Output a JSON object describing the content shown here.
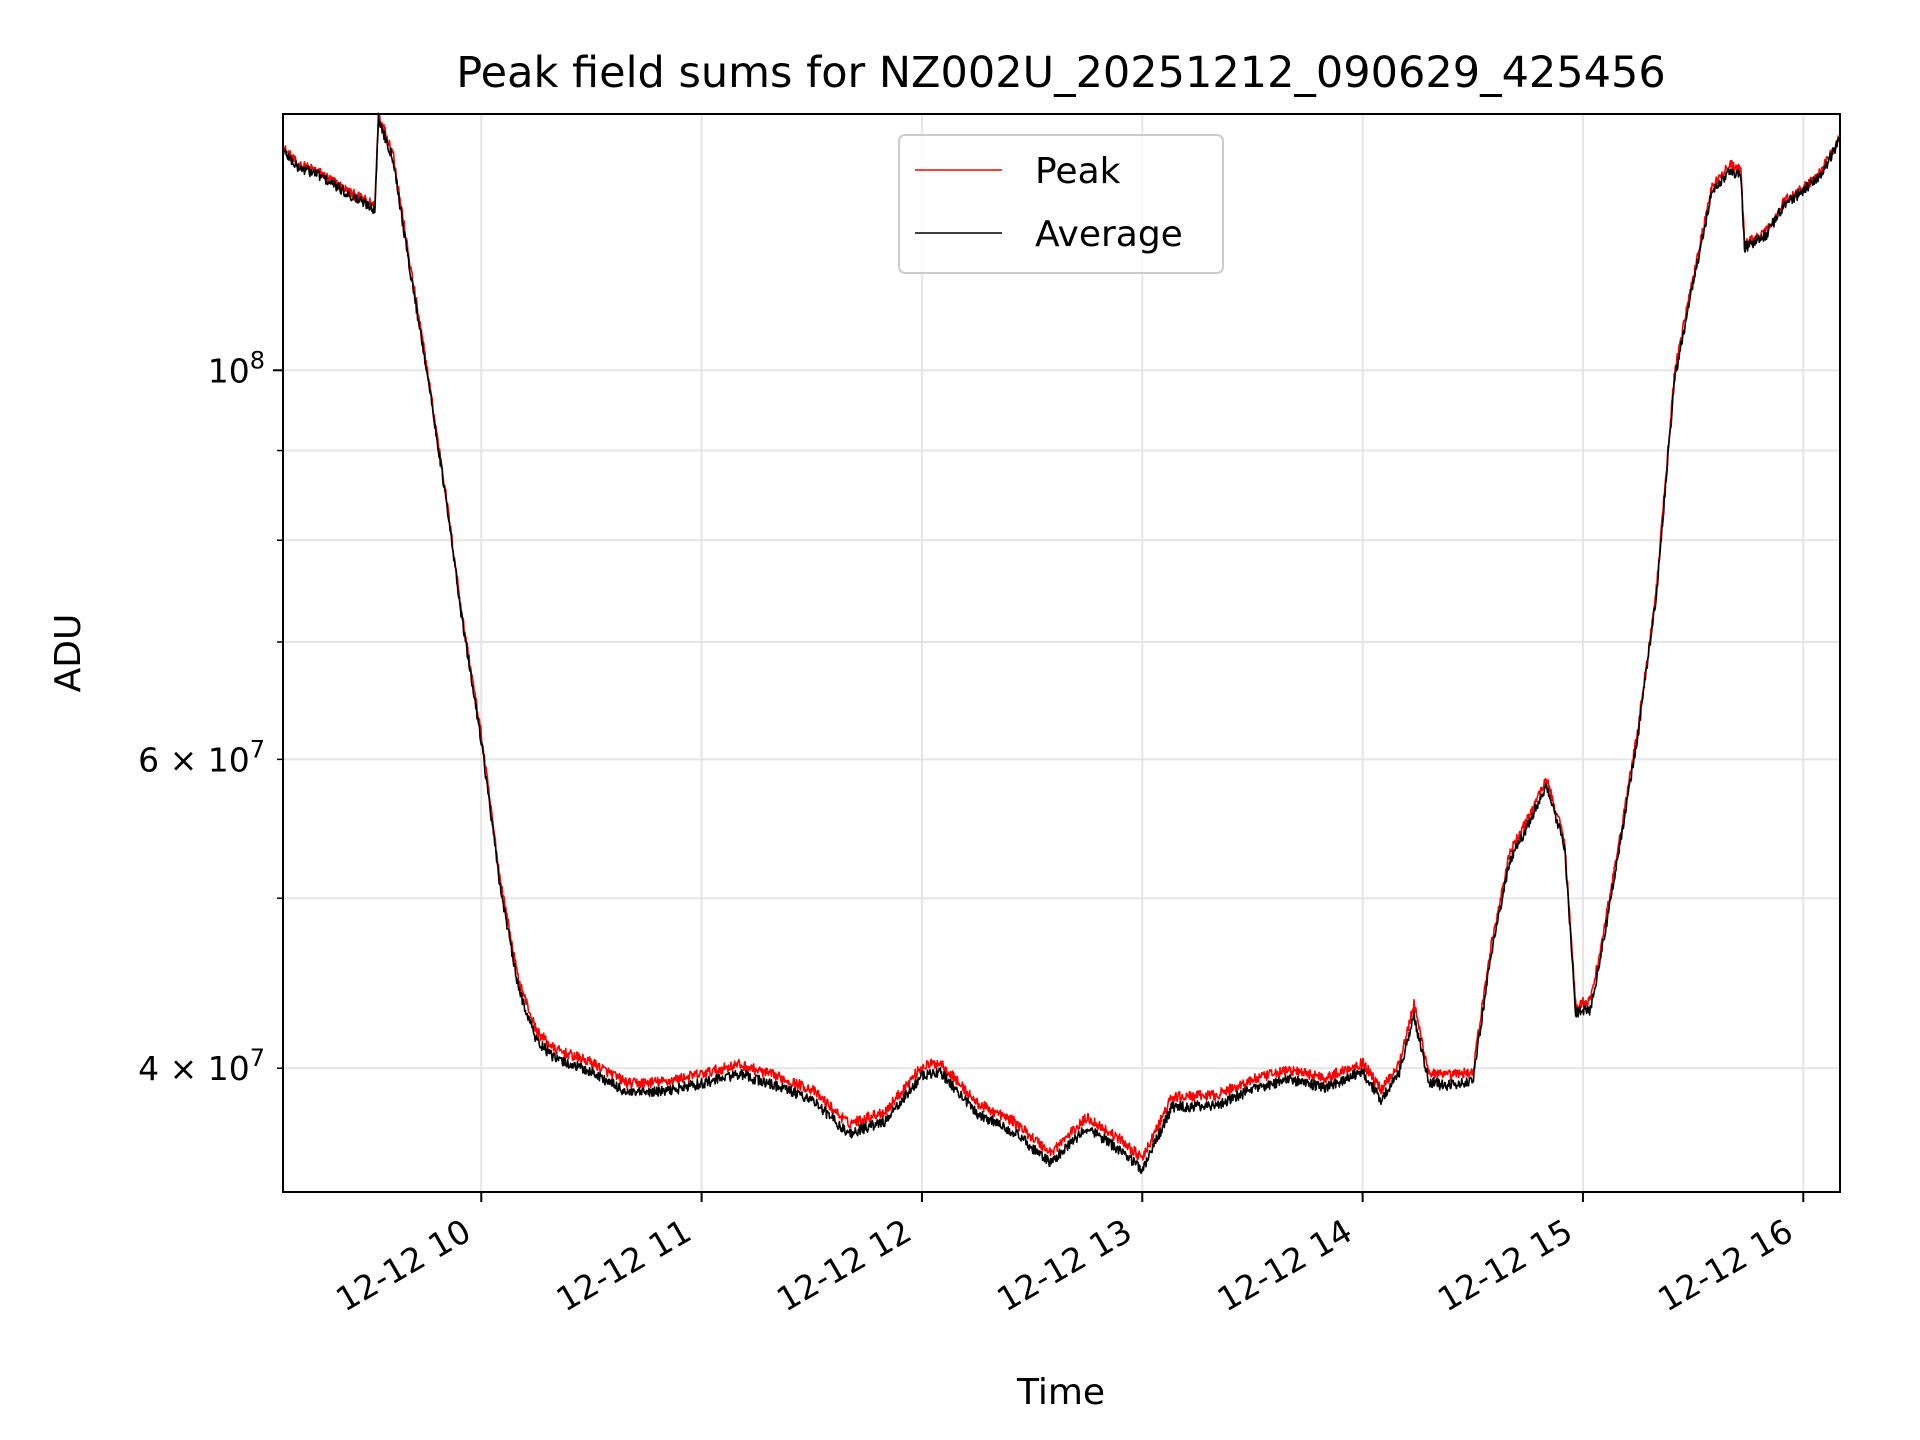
{
  "chart_data": {
    "type": "line",
    "title": "Peak field sums for NZ002U_20251212_090629_425456",
    "xlabel": "Time",
    "ylabel": "ADU",
    "yscale": "log",
    "ylim": [
      34000000,
      140000000
    ],
    "xlim": [
      "2025-12-12 09:06",
      "2025-12-12 16:10"
    ],
    "x_ticks": [
      {
        "value": "2025-12-12 10:00",
        "label": "12-12 10"
      },
      {
        "value": "2025-12-12 11:00",
        "label": "12-12 11"
      },
      {
        "value": "2025-12-12 12:00",
        "label": "12-12 12"
      },
      {
        "value": "2025-12-12 13:00",
        "label": "12-12 13"
      },
      {
        "value": "2025-12-12 14:00",
        "label": "12-12 14"
      },
      {
        "value": "2025-12-12 15:00",
        "label": "12-12 15"
      },
      {
        "value": "2025-12-12 16:00",
        "label": "12-12 16"
      }
    ],
    "y_major_ticks": [
      {
        "value": 100000000,
        "base": "10",
        "exp": "8"
      }
    ],
    "y_minor_ticks": [
      {
        "value": 40000000,
        "mant": "4",
        "base": "10",
        "exp": "7"
      },
      {
        "value": 60000000,
        "mant": "6",
        "base": "10",
        "exp": "7"
      },
      {
        "value": 50000000
      },
      {
        "value": 70000000
      },
      {
        "value": 80000000
      },
      {
        "value": 90000000
      }
    ],
    "grid": true,
    "legend": "upper center",
    "series": [
      {
        "name": "Peak",
        "color": "#ff0000",
        "x": [
          "2025-12-12 09:06",
          "2025-12-12 09:10",
          "2025-12-12 09:15",
          "2025-12-12 09:20",
          "2025-12-12 09:25",
          "2025-12-12 09:30",
          "2025-12-12 09:31",
          "2025-12-12 09:32",
          "2025-12-12 09:36",
          "2025-12-12 09:40",
          "2025-12-12 09:45",
          "2025-12-12 09:50",
          "2025-12-12 09:55",
          "2025-12-12 10:00",
          "2025-12-12 10:05",
          "2025-12-12 10:10",
          "2025-12-12 10:15",
          "2025-12-12 10:20",
          "2025-12-12 10:30",
          "2025-12-12 10:40",
          "2025-12-12 10:50",
          "2025-12-12 11:00",
          "2025-12-12 11:10",
          "2025-12-12 11:20",
          "2025-12-12 11:30",
          "2025-12-12 11:40",
          "2025-12-12 11:50",
          "2025-12-12 12:00",
          "2025-12-12 12:05",
          "2025-12-12 12:15",
          "2025-12-12 12:25",
          "2025-12-12 12:35",
          "2025-12-12 12:45",
          "2025-12-12 12:55",
          "2025-12-12 13:00",
          "2025-12-12 13:08",
          "2025-12-12 13:20",
          "2025-12-12 13:30",
          "2025-12-12 13:40",
          "2025-12-12 13:50",
          "2025-12-12 14:00",
          "2025-12-12 14:05",
          "2025-12-12 14:10",
          "2025-12-12 14:14",
          "2025-12-12 14:18",
          "2025-12-12 14:22",
          "2025-12-12 14:30",
          "2025-12-12 14:35",
          "2025-12-12 14:40",
          "2025-12-12 14:45",
          "2025-12-12 14:50",
          "2025-12-12 14:55",
          "2025-12-12 14:58",
          "2025-12-12 15:02",
          "2025-12-12 15:05",
          "2025-12-12 15:10",
          "2025-12-12 15:15",
          "2025-12-12 15:20",
          "2025-12-12 15:25",
          "2025-12-12 15:30",
          "2025-12-12 15:35",
          "2025-12-12 15:40",
          "2025-12-12 15:43",
          "2025-12-12 15:44",
          "2025-12-12 15:50",
          "2025-12-12 15:55",
          "2025-12-12 16:00",
          "2025-12-12 16:05",
          "2025-12-12 16:10"
        ],
        "y": [
          134000000,
          131000000,
          130000000,
          128000000,
          126000000,
          124500000,
          124000000,
          140000000,
          133000000,
          117000000,
          101000000,
          86000000,
          72000000,
          62000000,
          51500000,
          45000000,
          42000000,
          41000000,
          40300000,
          39200000,
          39300000,
          39700000,
          40200000,
          39600000,
          38900000,
          37200000,
          37800000,
          40100000,
          40300000,
          38200000,
          37300000,
          35800000,
          37500000,
          36300000,
          35500000,
          38500000,
          38600000,
          39400000,
          39900000,
          39500000,
          40300000,
          38900000,
          40300000,
          43500000,
          39800000,
          39600000,
          39800000,
          47000000,
          53000000,
          55500000,
          58500000,
          54000000,
          43500000,
          43700000,
          47000000,
          54000000,
          62500000,
          75000000,
          100000000,
          113000000,
          127000000,
          131000000,
          130000000,
          118000000,
          120000000,
          125000000,
          127000000,
          130000000,
          136000000
        ]
      },
      {
        "name": "Average",
        "color": "#000000",
        "x": [
          "2025-12-12 09:06",
          "2025-12-12 09:10",
          "2025-12-12 09:15",
          "2025-12-12 09:20",
          "2025-12-12 09:25",
          "2025-12-12 09:30",
          "2025-12-12 09:31",
          "2025-12-12 09:32",
          "2025-12-12 09:36",
          "2025-12-12 09:40",
          "2025-12-12 09:45",
          "2025-12-12 09:50",
          "2025-12-12 09:55",
          "2025-12-12 10:00",
          "2025-12-12 10:05",
          "2025-12-12 10:10",
          "2025-12-12 10:15",
          "2025-12-12 10:20",
          "2025-12-12 10:30",
          "2025-12-12 10:40",
          "2025-12-12 10:50",
          "2025-12-12 11:00",
          "2025-12-12 11:10",
          "2025-12-12 11:20",
          "2025-12-12 11:30",
          "2025-12-12 11:40",
          "2025-12-12 11:50",
          "2025-12-12 12:00",
          "2025-12-12 12:05",
          "2025-12-12 12:15",
          "2025-12-12 12:25",
          "2025-12-12 12:35",
          "2025-12-12 12:45",
          "2025-12-12 12:55",
          "2025-12-12 13:00",
          "2025-12-12 13:08",
          "2025-12-12 13:20",
          "2025-12-12 13:30",
          "2025-12-12 13:40",
          "2025-12-12 13:50",
          "2025-12-12 14:00",
          "2025-12-12 14:05",
          "2025-12-12 14:10",
          "2025-12-12 14:14",
          "2025-12-12 14:18",
          "2025-12-12 14:22",
          "2025-12-12 14:30",
          "2025-12-12 14:35",
          "2025-12-12 14:40",
          "2025-12-12 14:45",
          "2025-12-12 14:50",
          "2025-12-12 14:55",
          "2025-12-12 14:58",
          "2025-12-12 15:02",
          "2025-12-12 15:05",
          "2025-12-12 15:10",
          "2025-12-12 15:15",
          "2025-12-12 15:20",
          "2025-12-12 15:25",
          "2025-12-12 15:30",
          "2025-12-12 15:35",
          "2025-12-12 15:40",
          "2025-12-12 15:43",
          "2025-12-12 15:44",
          "2025-12-12 15:50",
          "2025-12-12 15:55",
          "2025-12-12 16:00",
          "2025-12-12 16:05",
          "2025-12-12 16:10"
        ],
        "y": [
          133500000,
          130500000,
          129500000,
          127500000,
          125500000,
          124000000,
          123500000,
          139000000,
          132000000,
          116000000,
          100500000,
          85500000,
          71500000,
          61500000,
          51000000,
          44500000,
          41500000,
          40500000,
          39800000,
          38700000,
          38800000,
          39200000,
          39700000,
          39100000,
          38400000,
          36700000,
          37300000,
          39600000,
          39800000,
          37700000,
          36800000,
          35300000,
          37000000,
          35800000,
          35000000,
          38000000,
          38100000,
          38900000,
          39400000,
          39000000,
          39800000,
          38400000,
          39800000,
          42800000,
          39300000,
          39100000,
          39300000,
          46500000,
          52500000,
          55000000,
          58000000,
          53500000,
          43000000,
          43200000,
          46500000,
          53500000,
          62000000,
          74500000,
          99000000,
          112000000,
          126000000,
          130000000,
          129000000,
          117500000,
          119500000,
          124500000,
          126500000,
          129500000,
          135500000
        ]
      }
    ]
  }
}
